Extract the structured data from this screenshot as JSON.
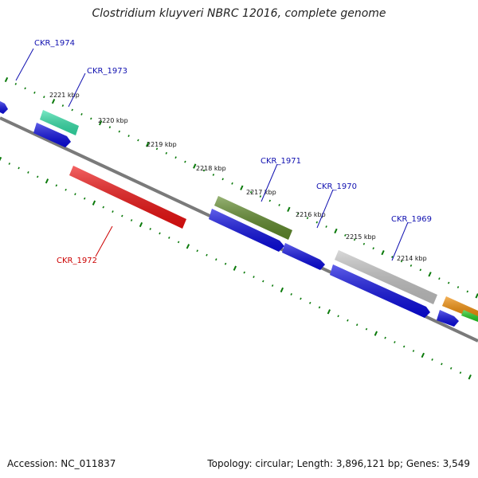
{
  "title": "Clostridium kluyveri NBRC 12016, complete genome",
  "footer": {
    "accession": "Accession: NC_011837",
    "genome_info": "Topology: circular; Length: 3,896,121 bp; Genes: 3,549"
  },
  "colors": {
    "backbone": "#7a7a7a",
    "tick": "#0b7a0b",
    "forward_label": "#1010b0",
    "reverse_label": "#cc0000"
  },
  "kbp_labels": [
    "2221 kbp",
    "2220 kbp",
    "2219 kbp",
    "2218 kbp",
    "2217 kbp",
    "2216 kbp",
    "2215 kbp",
    "2214 kbp"
  ],
  "genes": [
    {
      "name": "CKR_1974",
      "color": "#1010b0"
    },
    {
      "name": "CKR_1973",
      "color": "#1010b0"
    },
    {
      "name": "CKR_1972",
      "color": "#cc0000"
    },
    {
      "name": "CKR_1971",
      "color": "#1010b0"
    },
    {
      "name": "CKR_1970",
      "color": "#1010b0"
    },
    {
      "name": "CKR_1969",
      "color": "#1010b0"
    }
  ],
  "features": [
    {
      "name": "blue-arrow-edge",
      "color": "#0a0ae0"
    },
    {
      "name": "teal-gene",
      "color": "#33e0a8"
    },
    {
      "name": "blue-arrow-a",
      "color": "#0a0ae0"
    },
    {
      "name": "red-gene",
      "color": "#ee1010"
    },
    {
      "name": "olive-gene",
      "color": "#5f8a2a"
    },
    {
      "name": "blue-arrow-b",
      "color": "#0a0ae0"
    },
    {
      "name": "blue-arrow-c",
      "color": "#0a0ae0"
    },
    {
      "name": "gray-gene",
      "color": "#c4c4c4"
    },
    {
      "name": "blue-arrow-d",
      "color": "#0a0ae0"
    },
    {
      "name": "orange-gene",
      "color": "#f08a00"
    },
    {
      "name": "green-gene",
      "color": "#22cc22"
    },
    {
      "name": "blue-arrow-e",
      "color": "#0a0ae0"
    }
  ]
}
